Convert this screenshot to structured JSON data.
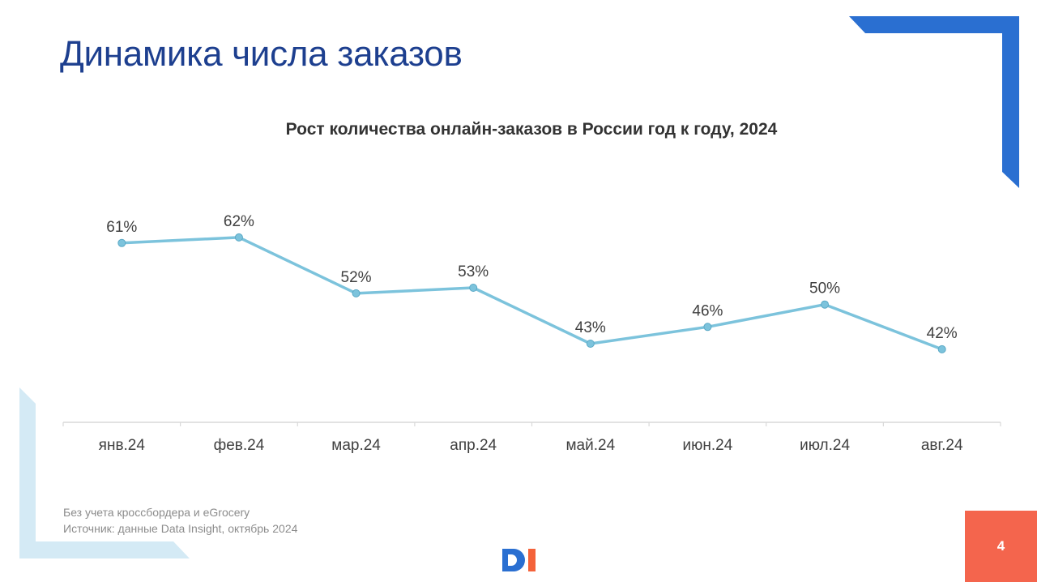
{
  "slide": {
    "title": "Динамика числа заказов",
    "page_number": "4",
    "notes": [
      "Без учета кроссбордера и eGrocery",
      "Источник: данные Data Insight, октябрь 2024"
    ]
  },
  "colors": {
    "title": "#1d3f8f",
    "line": "#7cc3dc",
    "accent_blue": "#2a6fd1",
    "accent_light": "#d4eaf5",
    "page_box": "#f4654d"
  },
  "chart_data": {
    "type": "line",
    "title": "Рост количества онлайн-заказов в России год к году, 2024",
    "categories": [
      "янв.24",
      "фев.24",
      "мар.24",
      "апр.24",
      "май.24",
      "июн.24",
      "июл.24",
      "авг.24"
    ],
    "series": [
      {
        "values": [
          61,
          62,
          52,
          53,
          43,
          46,
          50,
          42
        ],
        "labels": [
          "61%",
          "62%",
          "52%",
          "53%",
          "43%",
          "46%",
          "50%",
          "42%"
        ]
      }
    ],
    "xlabel": "",
    "ylabel": "",
    "grid": false,
    "legend": "none"
  }
}
